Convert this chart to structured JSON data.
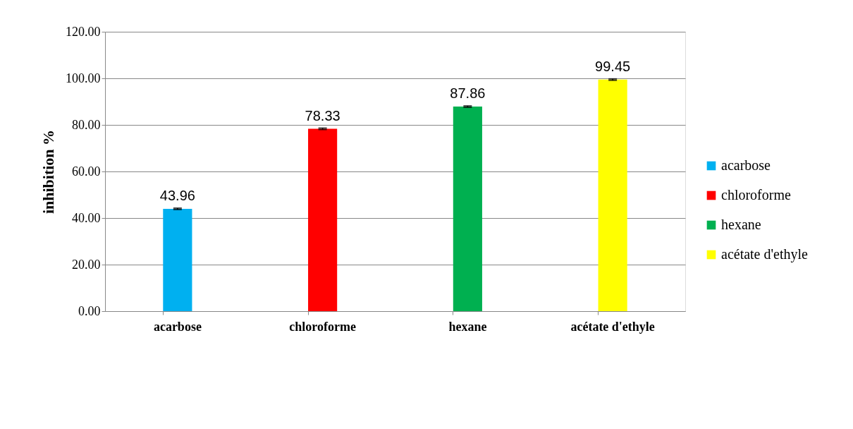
{
  "chart_data": {
    "type": "bar",
    "ylabel": "inhibition %",
    "categories": [
      "acarbose",
      "chloroforme",
      "hexane",
      "acétate d'ethyle"
    ],
    "series": [
      {
        "name": "acarbose",
        "color": "#00b0f0",
        "values": [
          43.96,
          null,
          null,
          null
        ],
        "errors": [
          0.3,
          null,
          null,
          null
        ]
      },
      {
        "name": "chloroforme",
        "color": "#ff0000",
        "values": [
          null,
          78.33,
          null,
          null
        ],
        "errors": [
          null,
          0.3,
          null,
          null
        ]
      },
      {
        "name": "hexane",
        "color": "#00b050",
        "values": [
          null,
          null,
          87.86,
          null
        ],
        "errors": [
          null,
          null,
          0.3,
          null
        ]
      },
      {
        "name": "acétate d'ethyle",
        "color": "#ffff00",
        "values": [
          null,
          null,
          null,
          99.45
        ],
        "errors": [
          null,
          null,
          null,
          0.3
        ]
      }
    ],
    "ylim": [
      0,
      120
    ],
    "yticks": [
      {
        "value": 0,
        "label": "0.00"
      },
      {
        "value": 20,
        "label": "20.00"
      },
      {
        "value": 40,
        "label": "40.00"
      },
      {
        "value": 60,
        "label": "60.00"
      },
      {
        "value": 80,
        "label": "80.00"
      },
      {
        "value": 100,
        "label": "100.00"
      },
      {
        "value": 120,
        "label": "120.00"
      }
    ],
    "grid": "y",
    "legend": "right",
    "data_labels": true
  }
}
